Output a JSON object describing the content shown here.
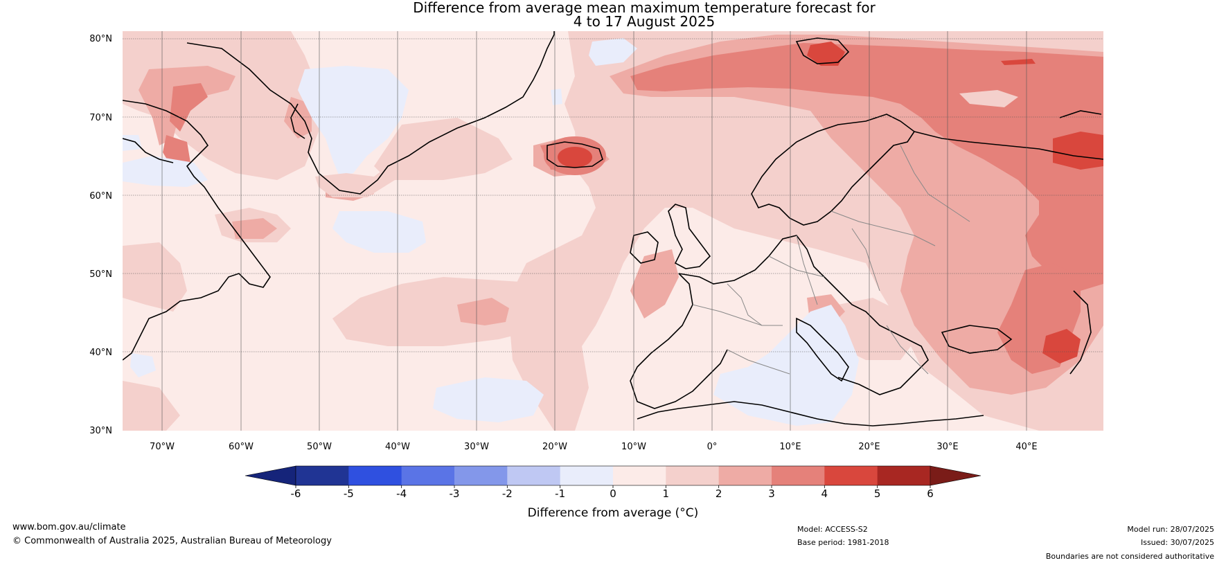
{
  "title": {
    "line1": "Difference from average mean maximum temperature forecast for",
    "line2": "4 to 17 August 2025"
  },
  "map": {
    "lat_labels": [
      "80°N",
      "70°N",
      "60°N",
      "50°N",
      "40°N",
      "30°N"
    ],
    "lon_labels": [
      "70°W",
      "60°W",
      "50°W",
      "40°W",
      "30°W",
      "20°W",
      "10°W",
      "0°",
      "10°E",
      "20°E",
      "30°E",
      "40°E"
    ],
    "extent": {
      "lon": [
        -75,
        50
      ],
      "lat": [
        30,
        81
      ]
    }
  },
  "colorbar": {
    "ticks": [
      "-6",
      "-5",
      "-4",
      "-3",
      "-2",
      "-1",
      "0",
      "1",
      "2",
      "3",
      "4",
      "5",
      "6"
    ],
    "colors": [
      "#203494",
      "#2f50e0",
      "#5a74e6",
      "#8397ea",
      "#bfc8f3",
      "#e9edfb",
      "#fcebe8",
      "#f4d0cc",
      "#eeaba5",
      "#e5817a",
      "#d9473d",
      "#a82722"
    ],
    "low_extend_color": "#15247a",
    "high_extend_color": "#7a1c18",
    "label": "Difference from average (°C)"
  },
  "footer": {
    "url": "www.bom.gov.au/climate",
    "copyright": "© Commonwealth of Australia 2025, Australian Bureau of Meteorology",
    "model": "Model: ACCESS-S2",
    "base_period": "Base period: 1981-2018",
    "model_run": "Model run: 28/07/2025",
    "issued": "Issued: 30/07/2025",
    "disclaimer": "Boundaries are not considered authoritative"
  }
}
